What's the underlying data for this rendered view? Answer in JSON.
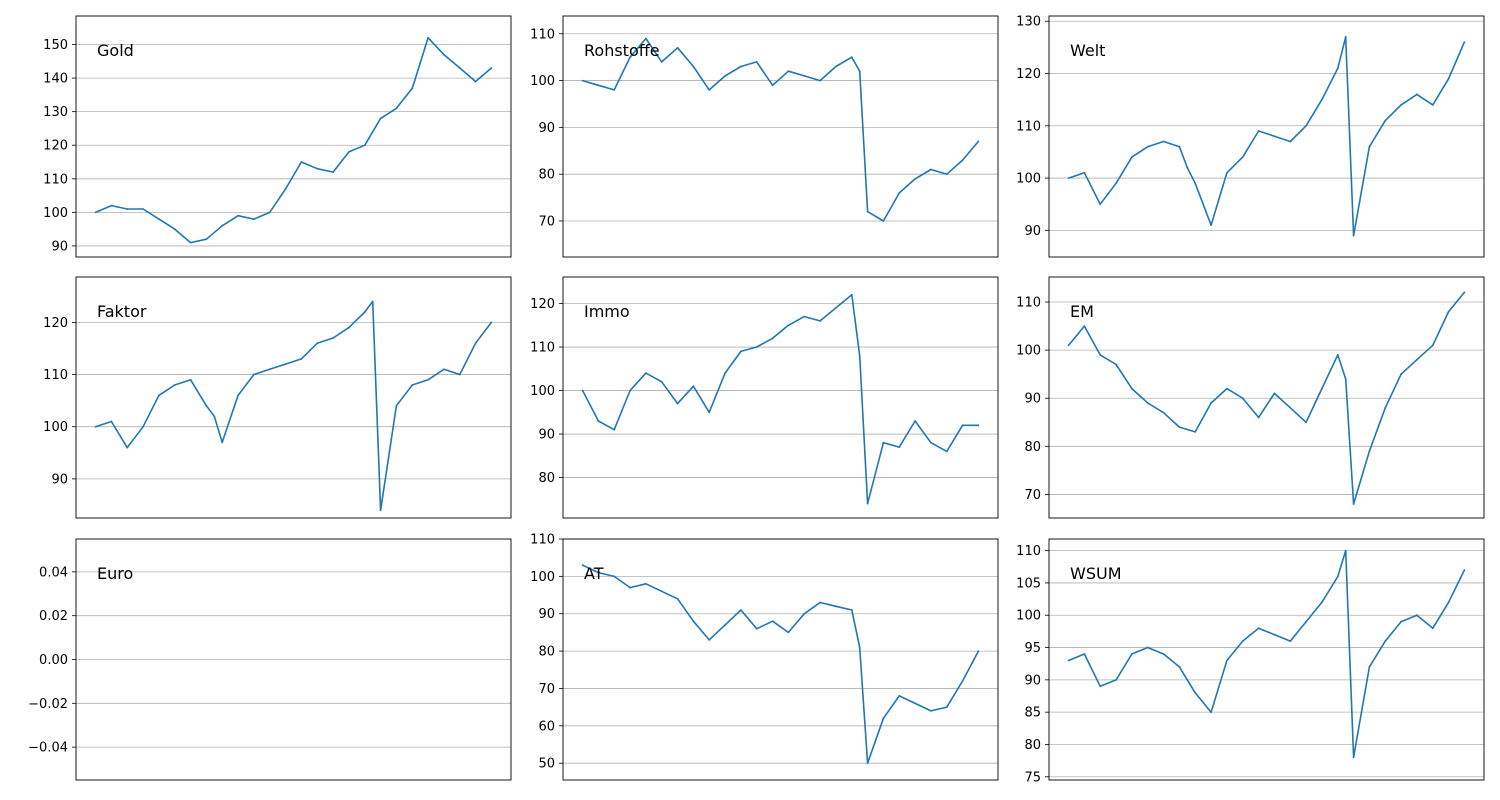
{
  "chart_data": [
    {
      "type": "line",
      "title": "Gold",
      "grid": "y",
      "ylim": [
        86.7,
        158.5
      ],
      "yticks": [
        90,
        100,
        110,
        120,
        130,
        140,
        150
      ],
      "yticklabels": [
        "90",
        "100",
        "110",
        "120",
        "130",
        "140",
        "150"
      ],
      "line_color": "#1f77b4",
      "series": [
        {
          "x": [
            0,
            0.04,
            0.08,
            0.12,
            0.16,
            0.2,
            0.24,
            0.28,
            0.32,
            0.36,
            0.4,
            0.44,
            0.48,
            0.52,
            0.56,
            0.6,
            0.64,
            0.68,
            0.72,
            0.76,
            0.8,
            0.84,
            0.88,
            0.92,
            0.96,
            1
          ],
          "values": [
            100,
            102,
            101,
            101,
            98,
            95,
            91,
            92,
            96,
            99,
            98,
            100,
            107,
            115,
            113,
            112,
            118,
            120,
            128,
            131,
            137,
            152,
            147,
            143,
            139,
            143
          ]
        }
      ]
    },
    {
      "type": "line",
      "title": "Rohstoffe",
      "grid": "y",
      "ylim": [
        62.3,
        113.8
      ],
      "yticks": [
        70,
        80,
        90,
        100,
        110
      ],
      "yticklabels": [
        "70",
        "80",
        "90",
        "100",
        "110"
      ],
      "line_color": "#1f77b4",
      "series": [
        {
          "x": [
            0,
            0.04,
            0.08,
            0.12,
            0.16,
            0.2,
            0.24,
            0.28,
            0.32,
            0.36,
            0.4,
            0.44,
            0.48,
            0.52,
            0.56,
            0.6,
            0.64,
            0.68,
            0.7,
            0.72,
            0.76,
            0.8,
            0.84,
            0.88,
            0.92,
            0.96,
            1
          ],
          "values": [
            100,
            99,
            98,
            105,
            109,
            104,
            107,
            103,
            98,
            101,
            103,
            104,
            99,
            102,
            101,
            100,
            103,
            105,
            102,
            72,
            70,
            76,
            79,
            81,
            80,
            83,
            87
          ]
        }
      ]
    },
    {
      "type": "line",
      "title": "Welt",
      "grid": "y",
      "ylim": [
        84.9,
        131.0
      ],
      "yticks": [
        90,
        100,
        110,
        120,
        130
      ],
      "yticklabels": [
        "90",
        "100",
        "110",
        "120",
        "130"
      ],
      "line_color": "#1f77b4",
      "series": [
        {
          "x": [
            0,
            0.04,
            0.08,
            0.12,
            0.16,
            0.2,
            0.24,
            0.28,
            0.3,
            0.32,
            0.36,
            0.4,
            0.44,
            0.48,
            0.52,
            0.56,
            0.6,
            0.64,
            0.68,
            0.7,
            0.72,
            0.76,
            0.8,
            0.84,
            0.88,
            0.92,
            0.96,
            1
          ],
          "values": [
            100,
            101,
            95,
            99,
            104,
            106,
            107,
            106,
            102,
            99,
            91,
            101,
            104,
            109,
            108,
            107,
            110,
            115,
            121,
            127,
            89,
            106,
            111,
            114,
            116,
            114,
            119,
            126
          ]
        }
      ]
    },
    {
      "type": "line",
      "title": "Faktor",
      "grid": "y",
      "ylim": [
        82.5,
        128.7
      ],
      "yticks": [
        90,
        100,
        110,
        120
      ],
      "yticklabels": [
        "90",
        "100",
        "110",
        "120"
      ],
      "line_color": "#1f77b4",
      "series": [
        {
          "x": [
            0,
            0.04,
            0.08,
            0.12,
            0.16,
            0.2,
            0.24,
            0.28,
            0.3,
            0.32,
            0.36,
            0.4,
            0.44,
            0.48,
            0.52,
            0.56,
            0.6,
            0.64,
            0.68,
            0.7,
            0.72,
            0.76,
            0.8,
            0.84,
            0.88,
            0.92,
            0.96,
            1
          ],
          "values": [
            100,
            101,
            96,
            100,
            106,
            108,
            109,
            104,
            102,
            97,
            106,
            110,
            111,
            112,
            113,
            116,
            117,
            119,
            122,
            124,
            84,
            104,
            108,
            109,
            111,
            110,
            116,
            120
          ]
        }
      ]
    },
    {
      "type": "line",
      "title": "Immo",
      "grid": "y",
      "ylim": [
        70.7,
        126.1
      ],
      "yticks": [
        80,
        90,
        100,
        110,
        120
      ],
      "yticklabels": [
        "80",
        "90",
        "100",
        "110",
        "120"
      ],
      "line_color": "#1f77b4",
      "series": [
        {
          "x": [
            0,
            0.04,
            0.08,
            0.12,
            0.16,
            0.2,
            0.24,
            0.28,
            0.32,
            0.36,
            0.4,
            0.44,
            0.48,
            0.52,
            0.56,
            0.6,
            0.64,
            0.68,
            0.7,
            0.72,
            0.76,
            0.8,
            0.84,
            0.88,
            0.92,
            0.96,
            1
          ],
          "values": [
            100,
            93,
            91,
            100,
            104,
            102,
            97,
            101,
            95,
            104,
            109,
            110,
            112,
            115,
            117,
            116,
            119,
            122,
            108,
            74,
            88,
            87,
            93,
            88,
            86,
            92,
            92
          ]
        }
      ]
    },
    {
      "type": "line",
      "title": "EM",
      "grid": "y",
      "ylim": [
        65.1,
        115.2
      ],
      "yticks": [
        70,
        80,
        90,
        100,
        110
      ],
      "yticklabels": [
        "70",
        "80",
        "90",
        "100",
        "110"
      ],
      "line_color": "#1f77b4",
      "series": [
        {
          "x": [
            0,
            0.04,
            0.08,
            0.12,
            0.16,
            0.2,
            0.24,
            0.28,
            0.32,
            0.36,
            0.4,
            0.44,
            0.48,
            0.52,
            0.56,
            0.6,
            0.64,
            0.68,
            0.7,
            0.72,
            0.76,
            0.8,
            0.84,
            0.88,
            0.92,
            0.96,
            1
          ],
          "values": [
            101,
            105,
            99,
            97,
            92,
            89,
            87,
            84,
            83,
            89,
            92,
            90,
            86,
            91,
            88,
            85,
            92,
            99,
            94,
            68,
            79,
            88,
            95,
            98,
            101,
            108,
            112
          ]
        }
      ]
    },
    {
      "type": "line",
      "title": "Euro",
      "grid": "y",
      "ylim": [
        -0.055,
        0.055
      ],
      "yticks": [
        -0.04,
        -0.02,
        0.0,
        0.02,
        0.04
      ],
      "yticklabels": [
        "−0.04",
        "−0.02",
        "0.00",
        "0.02",
        "0.04"
      ],
      "line_color": "#1f77b4",
      "series": [
        {
          "x": [],
          "values": []
        }
      ]
    },
    {
      "type": "line",
      "title": "AT",
      "grid": "y",
      "ylim": [
        45.5,
        110.0
      ],
      "yticks": [
        50,
        60,
        70,
        80,
        90,
        100,
        110
      ],
      "yticklabels": [
        "50",
        "60",
        "70",
        "80",
        "90",
        "100",
        "110"
      ],
      "line_color": "#1f77b4",
      "series": [
        {
          "x": [
            0,
            0.04,
            0.08,
            0.12,
            0.16,
            0.2,
            0.24,
            0.28,
            0.32,
            0.36,
            0.4,
            0.44,
            0.48,
            0.52,
            0.56,
            0.6,
            0.64,
            0.68,
            0.7,
            0.72,
            0.76,
            0.8,
            0.84,
            0.88,
            0.92,
            0.96,
            1
          ],
          "values": [
            103,
            101,
            100,
            97,
            98,
            96,
            94,
            88,
            83,
            87,
            91,
            86,
            88,
            85,
            90,
            93,
            92,
            91,
            81,
            50,
            62,
            68,
            66,
            64,
            65,
            72,
            80
          ]
        }
      ]
    },
    {
      "type": "line",
      "title": "WSUM",
      "grid": "y",
      "ylim": [
        74.5,
        111.8
      ],
      "yticks": [
        75,
        80,
        85,
        90,
        95,
        100,
        105,
        110
      ],
      "yticklabels": [
        "75",
        "80",
        "85",
        "90",
        "95",
        "100",
        "105",
        "110"
      ],
      "line_color": "#1f77b4",
      "series": [
        {
          "x": [
            0,
            0.04,
            0.08,
            0.12,
            0.16,
            0.2,
            0.24,
            0.28,
            0.3,
            0.32,
            0.36,
            0.4,
            0.44,
            0.48,
            0.52,
            0.56,
            0.6,
            0.64,
            0.68,
            0.7,
            0.72,
            0.76,
            0.8,
            0.84,
            0.88,
            0.92,
            0.96,
            1
          ],
          "values": [
            93,
            94,
            89,
            90,
            94,
            95,
            94,
            92,
            90,
            88,
            85,
            93,
            96,
            98,
            97,
            96,
            99,
            102,
            106,
            110,
            78,
            92,
            96,
            99,
            100,
            98,
            102,
            107
          ]
        }
      ]
    }
  ]
}
